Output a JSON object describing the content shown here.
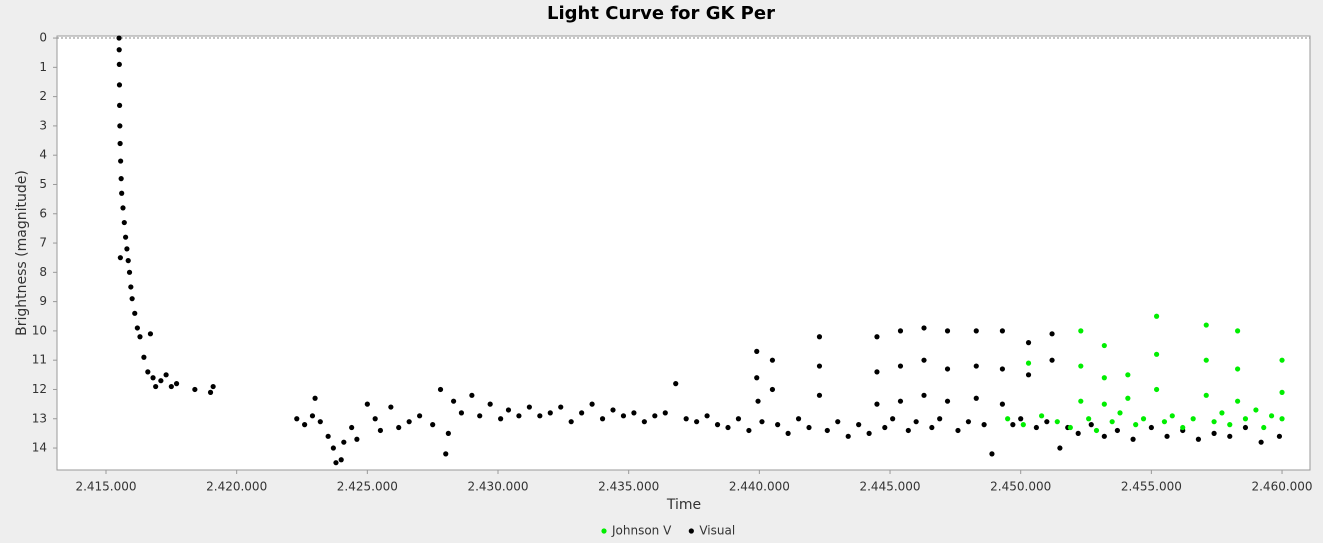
{
  "chart_data": {
    "type": "scatter",
    "title": "Light Curve for GK Per",
    "x_label": "Time",
    "y_label": "Brightness (magnitude)",
    "xlim": [
      2413125,
      2461070
    ],
    "ylim": [
      -0.07,
      14.75
    ],
    "y_inverted": true,
    "grid": false,
    "legend": "bottom",
    "xticks": [
      {
        "value": 2415000,
        "label": "2.415.000"
      },
      {
        "value": 2420000,
        "label": "2.420.000"
      },
      {
        "value": 2425000,
        "label": "2.425.000"
      },
      {
        "value": 2430000,
        "label": "2.430.000"
      },
      {
        "value": 2435000,
        "label": "2.435.000"
      },
      {
        "value": 2440000,
        "label": "2.440.000"
      },
      {
        "value": 2445000,
        "label": "2.445.000"
      },
      {
        "value": 2450000,
        "label": "2.450.000"
      },
      {
        "value": 2455000,
        "label": "2.455.000"
      },
      {
        "value": 2460000,
        "label": "2.460.000"
      }
    ],
    "yticks": [
      0,
      1,
      2,
      3,
      4,
      5,
      6,
      7,
      8,
      9,
      10,
      11,
      12,
      13,
      14
    ],
    "series": [
      {
        "name": "Johnson V",
        "color": "#00ee00",
        "x": [
          2449500,
          2450100,
          2450300,
          2450800,
          2451400,
          2451900,
          2452300,
          2452300,
          2452300,
          2452600,
          2452900,
          2453200,
          2453200,
          2453200,
          2453500,
          2453800,
          2454100,
          2454100,
          2454400,
          2454700,
          2455200,
          2455200,
          2455200,
          2455500,
          2455800,
          2456200,
          2456600,
          2457100,
          2457100,
          2457100,
          2457400,
          2457700,
          2458000,
          2458300,
          2458300,
          2458300,
          2458600,
          2459000,
          2459300,
          2459600,
          2460000,
          2460000,
          2460000
        ],
        "values": [
          13.0,
          13.2,
          11.1,
          12.9,
          13.1,
          13.3,
          10.0,
          11.2,
          12.4,
          13.0,
          13.4,
          10.5,
          11.6,
          12.5,
          13.1,
          12.8,
          11.5,
          12.3,
          13.2,
          13.0,
          9.5,
          10.8,
          12.0,
          13.1,
          12.9,
          13.3,
          13.0,
          9.8,
          11.0,
          12.2,
          13.1,
          12.8,
          13.2,
          10.0,
          11.3,
          12.4,
          13.0,
          12.7,
          13.3,
          12.9,
          11.0,
          12.1,
          13.0
        ]
      },
      {
        "name": "Visual",
        "color": "#000000",
        "x": [
          2415500,
          2415505,
          2415510,
          2415515,
          2415520,
          2415530,
          2415540,
          2415560,
          2415580,
          2415600,
          2415650,
          2415700,
          2415750,
          2415800,
          2415550,
          2415850,
          2415900,
          2415950,
          2416000,
          2416100,
          2416200,
          2416300,
          2416700,
          2416450,
          2416600,
          2416800,
          2416900,
          2417100,
          2417300,
          2417500,
          2417700,
          2418400,
          2419000,
          2419100,
          2422300,
          2422600,
          2422900,
          2423000,
          2423200,
          2423500,
          2423700,
          2423800,
          2424000,
          2424100,
          2424400,
          2424600,
          2425000,
          2425300,
          2425500,
          2425900,
          2426200,
          2426600,
          2427000,
          2427500,
          2427800,
          2428000,
          2428100,
          2428300,
          2428600,
          2429000,
          2429300,
          2429700,
          2430100,
          2430400,
          2430800,
          2431200,
          2431600,
          2432000,
          2432400,
          2432800,
          2433200,
          2433600,
          2434000,
          2434400,
          2434800,
          2435200,
          2435600,
          2436000,
          2436400,
          2436800,
          2437200,
          2437600,
          2438000,
          2438400,
          2438800,
          2439200,
          2439600,
          2439900,
          2439900,
          2439950,
          2440100,
          2440500,
          2440500,
          2440700,
          2441100,
          2441500,
          2441900,
          2442300,
          2442300,
          2442300,
          2442600,
          2443000,
          2443400,
          2443800,
          2444200,
          2444500,
          2444500,
          2444500,
          2444800,
          2445100,
          2445400,
          2445400,
          2445400,
          2445700,
          2446000,
          2446300,
          2446300,
          2446300,
          2446600,
          2446900,
          2447200,
          2447200,
          2447200,
          2447600,
          2448000,
          2448300,
          2448300,
          2448300,
          2448600,
          2448900,
          2449300,
          2449300,
          2449300,
          2449700,
          2450000,
          2450300,
          2450300,
          2450600,
          2451000,
          2451200,
          2451200,
          2451500,
          2451800,
          2452200,
          2452700,
          2453200,
          2453700,
          2454300,
          2455000,
          2455600,
          2456200,
          2456800,
          2457400,
          2458000,
          2458600,
          2459200,
          2459900
        ],
        "values": [
          0,
          0.4,
          0.9,
          1.6,
          2.3,
          3,
          3.6,
          4.2,
          4.8,
          5.3,
          5.8,
          6.3,
          6.8,
          7.2,
          7.5,
          7.6,
          8.0,
          8.5,
          8.9,
          9.4,
          9.9,
          10.2,
          10.1,
          10.9,
          11.4,
          11.6,
          11.9,
          11.7,
          11.5,
          11.9,
          11.8,
          12.0,
          12.1,
          11.9,
          13.0,
          13.2,
          12.9,
          12.3,
          13.1,
          13.6,
          14.0,
          14.5,
          14.4,
          13.8,
          13.3,
          13.7,
          12.5,
          13.0,
          13.4,
          12.6,
          13.3,
          13.1,
          12.9,
          13.2,
          12.0,
          14.2,
          13.5,
          12.4,
          12.8,
          12.2,
          12.9,
          12.5,
          13.0,
          12.7,
          12.9,
          12.6,
          12.9,
          12.8,
          12.6,
          13.1,
          12.8,
          12.5,
          13.0,
          12.7,
          12.9,
          12.8,
          13.1,
          12.9,
          12.8,
          11.8,
          13.0,
          13.1,
          12.9,
          13.2,
          13.3,
          13.0,
          13.4,
          10.7,
          11.6,
          12.4,
          13.1,
          11.0,
          12.0,
          13.2,
          13.5,
          13.0,
          13.3,
          10.2,
          11.2,
          12.2,
          13.4,
          13.1,
          13.6,
          13.2,
          13.5,
          10.2,
          11.4,
          12.5,
          13.3,
          13.0,
          10.0,
          11.2,
          12.4,
          13.4,
          13.1,
          9.9,
          11.0,
          12.2,
          13.3,
          13.0,
          10.0,
          11.3,
          12.4,
          13.4,
          13.1,
          10.0,
          11.2,
          12.3,
          13.2,
          14.2,
          10.0,
          11.3,
          12.5,
          13.2,
          13.0,
          10.4,
          11.5,
          13.3,
          13.1,
          10.1,
          11.0,
          14.0,
          13.3,
          13.5,
          13.2,
          13.6,
          13.4,
          13.7,
          13.3,
          13.6,
          13.4,
          13.7,
          13.5,
          13.6,
          13.3,
          13.8,
          13.6
        ]
      }
    ]
  }
}
